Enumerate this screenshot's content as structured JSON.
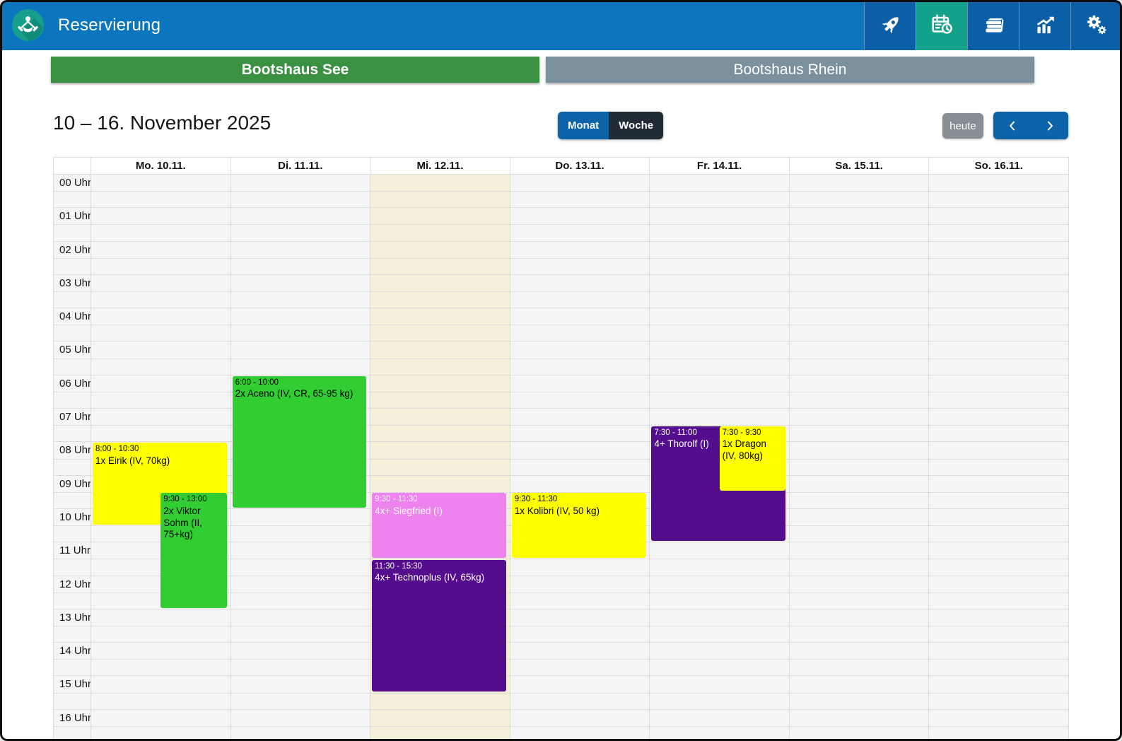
{
  "app": {
    "title": "Reservierung"
  },
  "nav": {
    "bar_color": "#0b76bd",
    "button_color": "#0b5fa6",
    "active_button_color": "#14a18c",
    "items": [
      {
        "icon": "rocket-icon",
        "active": false
      },
      {
        "icon": "calendar-clock-icon",
        "active": true
      },
      {
        "icon": "books-icon",
        "active": false
      },
      {
        "icon": "chart-icon",
        "active": false
      },
      {
        "icon": "gears-icon",
        "active": false
      }
    ]
  },
  "tabs": [
    {
      "label": "Bootshaus See",
      "active": true,
      "color": "#3b9142"
    },
    {
      "label": "Bootshaus Rhein",
      "active": false,
      "color": "#7b929e"
    }
  ],
  "toolbar": {
    "title": "10 – 16. November 2025",
    "month_label": "Monat",
    "week_label": "Woche",
    "active_view": "Woche",
    "today_label": "heute",
    "prev_icon": "chevron-left",
    "next_icon": "chevron-right"
  },
  "calendar": {
    "days": [
      "Mo. 10.11.",
      "Di. 11.11.",
      "Mi. 12.11.",
      "Do. 13.11.",
      "Fr. 14.11.",
      "Sa. 15.11.",
      "So. 16.11."
    ],
    "today_index": 2,
    "today_highlight_color": "#f5efd9",
    "hours": [
      "00 Uhr",
      "01 Uhr",
      "02 Uhr",
      "03 Uhr",
      "04 Uhr",
      "05 Uhr",
      "06 Uhr",
      "07 Uhr",
      "08 Uhr",
      "09 Uhr",
      "10 Uhr",
      "11 Uhr",
      "12 Uhr",
      "13 Uhr",
      "14 Uhr",
      "15 Uhr",
      "16 Uhr"
    ],
    "events": [
      {
        "day": 0,
        "time": "8:00 - 10:30",
        "title": "1x Eirik (IV, 70kg)",
        "start": 8,
        "end": 10.5,
        "bg": "#ffff00",
        "fg": "#000000",
        "half": false
      },
      {
        "day": 0,
        "time": "9:30 - 13:00",
        "title": "2x Viktor Sohm (II, 75+kg)",
        "start": 9.5,
        "end": 13,
        "bg": "#32cd32",
        "fg": "#000000",
        "half": true
      },
      {
        "day": 1,
        "time": "6:00 - 10:00",
        "title": "2x Aceno (IV, CR, 65-95 kg)",
        "start": 6,
        "end": 10,
        "bg": "#32cd32",
        "fg": "#000000",
        "half": false
      },
      {
        "day": 2,
        "time": "9:30 - 11:30",
        "title": "4x+ Siegfried (I)",
        "start": 9.5,
        "end": 11.5,
        "bg": "#ee82ee",
        "fg": "#ffffff",
        "half": false
      },
      {
        "day": 2,
        "time": "11:30 - 15:30",
        "title": "4x+ Technoplus (IV, 65kg)",
        "start": 11.5,
        "end": 15.5,
        "bg": "#540d8c",
        "fg": "#ffffff",
        "half": false
      },
      {
        "day": 3,
        "time": "9:30 - 11:30",
        "title": "1x Kolibri (IV, 50 kg)",
        "start": 9.5,
        "end": 11.5,
        "bg": "#ffff00",
        "fg": "#000000",
        "half": false
      },
      {
        "day": 4,
        "time": "7:30 - 11:00",
        "title": "4+ Thorolf (I)",
        "start": 7.5,
        "end": 11,
        "bg": "#540d8c",
        "fg": "#ffffff",
        "half": false
      },
      {
        "day": 4,
        "time": "7:30 - 9:30",
        "title": "1x Dragon (IV, 80kg)",
        "start": 7.5,
        "end": 9.5,
        "bg": "#ffff00",
        "fg": "#000000",
        "half": true
      }
    ]
  }
}
